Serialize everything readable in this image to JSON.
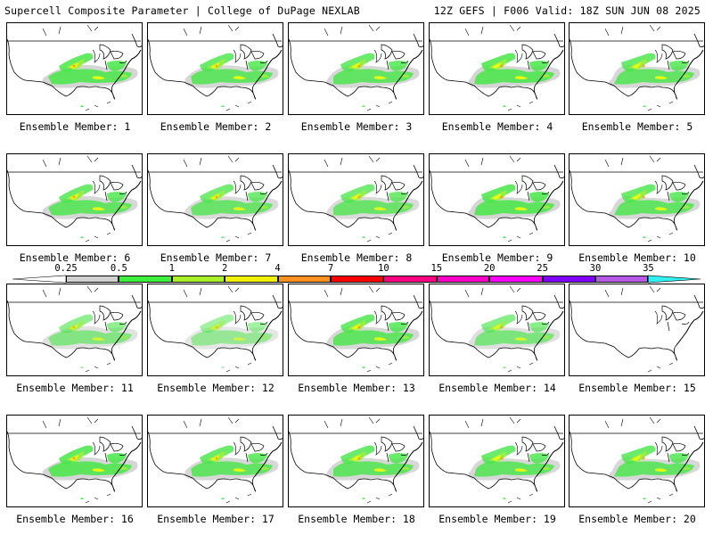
{
  "header": {
    "left": "Supercell Composite Parameter | College of DuPage NEXLAB",
    "right": "12Z GEFS | F006 Valid: 18Z SUN JUN 08 2025"
  },
  "members": [
    {
      "caption": "Ensemble Member: 1",
      "coverage": 0.85
    },
    {
      "caption": "Ensemble Member: 2",
      "coverage": 0.8
    },
    {
      "caption": "Ensemble Member: 3",
      "coverage": 0.8
    },
    {
      "caption": "Ensemble Member: 4",
      "coverage": 0.85
    },
    {
      "caption": "Ensemble Member: 5",
      "coverage": 0.8
    },
    {
      "caption": "Ensemble Member: 6",
      "coverage": 0.8
    },
    {
      "caption": "Ensemble Member: 7",
      "coverage": 0.75
    },
    {
      "caption": "Ensemble Member: 8",
      "coverage": 0.75
    },
    {
      "caption": "Ensemble Member: 9",
      "coverage": 0.85
    },
    {
      "caption": "Ensemble Member: 10",
      "coverage": 0.8
    },
    {
      "caption": "Ensemble Member: 11",
      "coverage": 0.6
    },
    {
      "caption": "Ensemble Member: 12",
      "coverage": 0.5
    },
    {
      "caption": "Ensemble Member: 13",
      "coverage": 0.8
    },
    {
      "caption": "Ensemble Member: 14",
      "coverage": 0.65
    },
    {
      "caption": "Ensemble Member: 15",
      "coverage": 0.0
    },
    {
      "caption": "Ensemble Member: 16",
      "coverage": 0.85
    },
    {
      "caption": "Ensemble Member: 17",
      "coverage": 0.8
    },
    {
      "caption": "Ensemble Member: 18",
      "coverage": 0.8
    },
    {
      "caption": "Ensemble Member: 19",
      "coverage": 0.8
    },
    {
      "caption": "Ensemble Member: 20",
      "coverage": 0.8
    }
  ],
  "colorbar": {
    "labels": [
      "0.25",
      "0.5",
      "1",
      "2",
      "4",
      "7",
      "10",
      "15",
      "20",
      "25",
      "30",
      "35"
    ],
    "colors": [
      "#d0d0d0",
      "#3cf03c",
      "#a8f028",
      "#f0f000",
      "#ff9020",
      "#ff0000",
      "#ff0080",
      "#ff00c8",
      "#ff00ff",
      "#8000ff",
      "#b45ae6",
      "#30f0f0"
    ]
  },
  "map_colors": {
    "gray": "#c8c8c8",
    "green": "#46e646",
    "lime": "#a0f03c",
    "yellow": "#ffff00",
    "orange": "#ff9020",
    "red": "#ff0000"
  }
}
